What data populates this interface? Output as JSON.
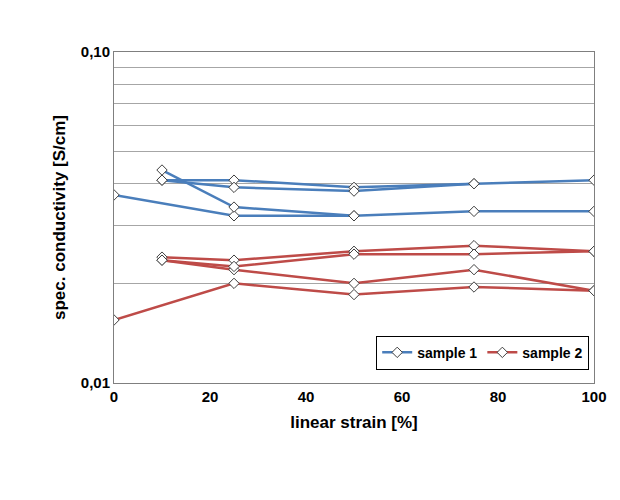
{
  "chart_data": {
    "type": "line",
    "x_label": "linear strain [%]",
    "y_label": "spec. conductivity [S/cm]",
    "log": "y",
    "grid": true,
    "legend": "lower right",
    "xlim": [
      0,
      100
    ],
    "xticks": [
      0,
      20,
      40,
      60,
      80,
      100
    ],
    "ylim": [
      0.01,
      0.1
    ],
    "yticks": [
      {
        "value": 0.01,
        "label": "0,01"
      },
      {
        "value": 0.1,
        "label": "0,10"
      }
    ],
    "series": [
      {
        "name": "sample 1",
        "color": "#4a7ebb",
        "marker": "diamond",
        "x": [
          0,
          25,
          50,
          75,
          100,
          null,
          10,
          25,
          50,
          null,
          10,
          25,
          50,
          75,
          100,
          null,
          10,
          25,
          50,
          75
        ],
        "values": [
          0.037,
          0.032,
          0.032,
          0.033,
          0.033,
          null,
          0.044,
          0.034,
          0.032,
          null,
          0.041,
          0.041,
          0.039,
          0.04,
          0.041,
          null,
          0.041,
          0.039,
          0.038,
          0.04
        ]
      },
      {
        "name": "sample 2",
        "color": "#be4b48",
        "marker": "diamond",
        "x": [
          0,
          25,
          50,
          75,
          100,
          null,
          10,
          25,
          50,
          75,
          100,
          null,
          10,
          25,
          50,
          75,
          100,
          null,
          10,
          25,
          50,
          75,
          100
        ],
        "values": [
          0.0155,
          0.02,
          0.0185,
          0.0195,
          0.019,
          null,
          0.024,
          0.0235,
          0.025,
          0.026,
          0.025,
          null,
          0.0235,
          0.022,
          0.02,
          0.022,
          0.019,
          null,
          0.0235,
          0.0225,
          0.0245,
          0.0245,
          0.025
        ]
      }
    ]
  }
}
